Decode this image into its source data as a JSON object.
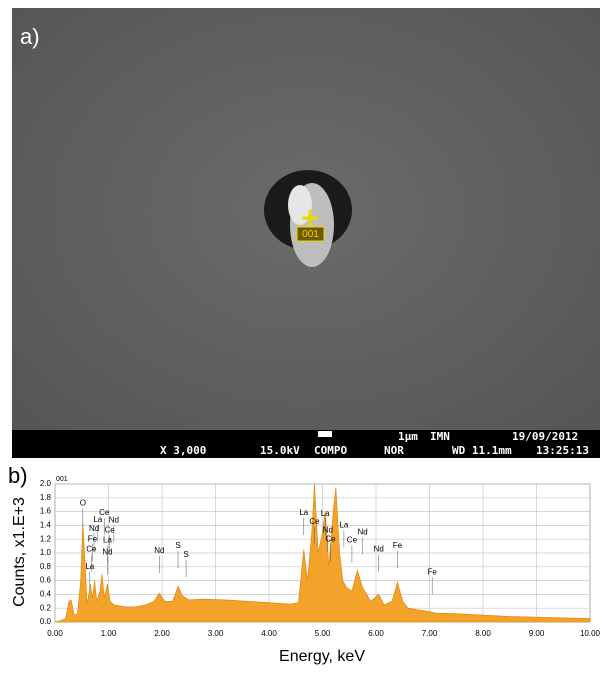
{
  "panel_a": {
    "label": "a)",
    "marker": "001",
    "info_bar": {
      "magnification": "X 3,000",
      "voltage": "15.0kV",
      "mode": "COMPO",
      "scan": "NOR",
      "scale": "1μm",
      "lab": "IMN",
      "date": "19/09/2012",
      "wd": "WD 11.1mm",
      "time": "13:25:13"
    }
  },
  "panel_b": {
    "label": "b)",
    "spectrum_id": "001"
  },
  "chart_data": {
    "type": "area",
    "x_label": "Energy, keV",
    "y_label": "Counts, x1.E+3",
    "color": "#f4a32a",
    "grid": true,
    "x": [
      0,
      0.1,
      0.2,
      0.26,
      0.3,
      0.36,
      0.42,
      0.48,
      0.52,
      0.56,
      0.6,
      0.66,
      0.7,
      0.74,
      0.78,
      0.84,
      0.88,
      0.92,
      0.98,
      1.03,
      1.1,
      1.3,
      1.5,
      1.7,
      1.85,
      1.95,
      2.05,
      2.2,
      2.3,
      2.38,
      2.5,
      2.8,
      3.2,
      3.6,
      4.0,
      4.4,
      4.55,
      4.65,
      4.72,
      4.8,
      4.85,
      4.92,
      5.0,
      5.05,
      5.12,
      5.2,
      5.25,
      5.32,
      5.38,
      5.45,
      5.55,
      5.65,
      5.75,
      5.9,
      6.05,
      6.15,
      6.3,
      6.4,
      6.5,
      6.6,
      7.0,
      7.1,
      7.5,
      8.0,
      8.5,
      9.0,
      9.5,
      10.0
    ],
    "values": [
      0,
      0.02,
      0.05,
      0.3,
      0.32,
      0.1,
      0.12,
      0.6,
      1.45,
      0.9,
      0.25,
      0.55,
      0.35,
      0.6,
      0.3,
      0.45,
      0.7,
      0.35,
      0.55,
      0.3,
      0.25,
      0.22,
      0.22,
      0.25,
      0.3,
      0.42,
      0.3,
      0.3,
      0.52,
      0.38,
      0.32,
      0.33,
      0.32,
      0.3,
      0.28,
      0.26,
      0.28,
      1.05,
      0.6,
      1.3,
      2.0,
      1.0,
      1.3,
      1.6,
      0.8,
      1.6,
      1.95,
      1.0,
      0.6,
      0.5,
      0.45,
      0.75,
      0.5,
      0.3,
      0.4,
      0.25,
      0.3,
      0.58,
      0.3,
      0.2,
      0.15,
      0.13,
      0.12,
      0.1,
      0.08,
      0.07,
      0.06,
      0.05
    ],
    "xlim": [
      0,
      10
    ],
    "xticks": [
      {
        "value": 0,
        "label": "0.00"
      },
      {
        "value": 1,
        "label": "1.00"
      },
      {
        "value": 2,
        "label": "2.00"
      },
      {
        "value": 3,
        "label": "3.00"
      },
      {
        "value": 4,
        "label": "4.00"
      },
      {
        "value": 5,
        "label": "5.00"
      },
      {
        "value": 6,
        "label": "6.00"
      },
      {
        "value": 7,
        "label": "7.00"
      },
      {
        "value": 8,
        "label": "8.00"
      },
      {
        "value": 9,
        "label": "9.00"
      },
      {
        "value": 10,
        "label": "10.00"
      }
    ],
    "ylim": [
      0,
      2
    ],
    "yticks": [
      {
        "value": 0,
        "label": "0.0"
      },
      0.2,
      0.4,
      0.6,
      0.8,
      {
        "value": 1,
        "label": "1.0"
      },
      1.2,
      1.4,
      1.6,
      1.8,
      {
        "value": 2,
        "label": "2.0"
      }
    ],
    "peak_labels": [
      {
        "label": "O",
        "x": 0.52,
        "y": 1.72
      },
      {
        "label": "Ce",
        "x": 0.92,
        "y": 1.58
      },
      {
        "label": "La",
        "x": 0.8,
        "y": 1.48
      },
      {
        "label": "Nd",
        "x": 1.1,
        "y": 1.47
      },
      {
        "label": "Nd",
        "x": 0.73,
        "y": 1.35
      },
      {
        "label": "Ce",
        "x": 1.02,
        "y": 1.33
      },
      {
        "label": "Fe",
        "x": 0.7,
        "y": 1.2
      },
      {
        "label": "La",
        "x": 0.98,
        "y": 1.18
      },
      {
        "label": "Ce",
        "x": 0.68,
        "y": 1.05
      },
      {
        "label": "Nd",
        "x": 0.98,
        "y": 1.01
      },
      {
        "label": "La",
        "x": 0.65,
        "y": 0.8
      },
      {
        "label": "Nd",
        "x": 1.95,
        "y": 1.03
      },
      {
        "label": "S",
        "x": 2.3,
        "y": 1.1
      },
      {
        "label": "S",
        "x": 2.45,
        "y": 0.97
      },
      {
        "label": "La",
        "x": 4.65,
        "y": 1.58
      },
      {
        "label": "Ce",
        "x": 4.85,
        "y": 1.45
      },
      {
        "label": "La",
        "x": 5.05,
        "y": 1.57
      },
      {
        "label": "Nd",
        "x": 5.1,
        "y": 1.33
      },
      {
        "label": "Ce",
        "x": 5.15,
        "y": 1.2
      },
      {
        "label": "La",
        "x": 5.4,
        "y": 1.4
      },
      {
        "label": "Nd",
        "x": 5.75,
        "y": 1.3
      },
      {
        "label": "Ce",
        "x": 5.55,
        "y": 1.18
      },
      {
        "label": "Nd",
        "x": 6.05,
        "y": 1.05
      },
      {
        "label": "Fe",
        "x": 6.4,
        "y": 1.1
      },
      {
        "label": "Fe",
        "x": 7.05,
        "y": 0.72
      }
    ]
  }
}
